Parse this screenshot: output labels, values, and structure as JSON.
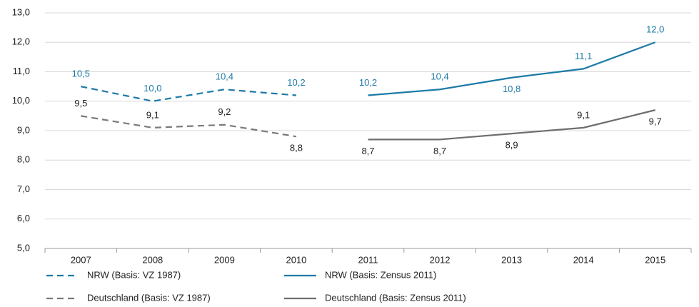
{
  "chart_data": {
    "type": "line",
    "categories": [
      "2007",
      "2008",
      "2009",
      "2010",
      "2011",
      "2012",
      "2013",
      "2014",
      "2015"
    ],
    "series": [
      {
        "name": "NRW (Basis: VZ 1987)",
        "color": "#1c7aa6",
        "dashed": true,
        "values": [
          10.5,
          10.0,
          10.4,
          10.2,
          null,
          null,
          null,
          null,
          null
        ],
        "value_labels": [
          "10,5",
          "10,0",
          "10,4",
          "10,2",
          null,
          null,
          null,
          null,
          null
        ]
      },
      {
        "name": "NRW (Basis: Zensus 2011)",
        "color": "#1c7aa6",
        "dashed": false,
        "values": [
          null,
          null,
          null,
          null,
          10.2,
          10.4,
          10.8,
          11.1,
          12.0
        ],
        "value_labels": [
          null,
          null,
          null,
          null,
          "10,2",
          "10,4",
          "10,8",
          "11,1",
          "12,0"
        ]
      },
      {
        "name": "Deutschland (Basis: VZ 1987)",
        "color": "#7a7a7a",
        "dashed": true,
        "values": [
          9.5,
          9.1,
          9.2,
          8.8,
          null,
          null,
          null,
          null,
          null
        ],
        "value_labels": [
          "9,5",
          "9,1",
          "9,2",
          "8,8",
          null,
          null,
          null,
          null,
          null
        ]
      },
      {
        "name": "Deutschland (Basis: Zensus 2011)",
        "color": "#6e6e6e",
        "dashed": false,
        "values": [
          null,
          null,
          null,
          null,
          8.7,
          8.7,
          8.9,
          9.1,
          9.7
        ],
        "value_labels": [
          null,
          null,
          null,
          null,
          "8,7",
          "8,7",
          "8,9",
          "9,1",
          "9,7"
        ]
      }
    ],
    "ylim": [
      5,
      13
    ],
    "yticks": [
      {
        "value": 5,
        "label": "5,0"
      },
      {
        "value": 6,
        "label": "6,0"
      },
      {
        "value": 7,
        "label": "7,0"
      },
      {
        "value": 8,
        "label": "8,0"
      },
      {
        "value": 9,
        "label": "9,0"
      },
      {
        "value": 10,
        "label": "10,0"
      },
      {
        "value": 11,
        "label": "11,0"
      },
      {
        "value": 12,
        "label": "12,0"
      },
      {
        "value": 13,
        "label": "13,0"
      }
    ],
    "grid": true,
    "legend": "bottom"
  }
}
